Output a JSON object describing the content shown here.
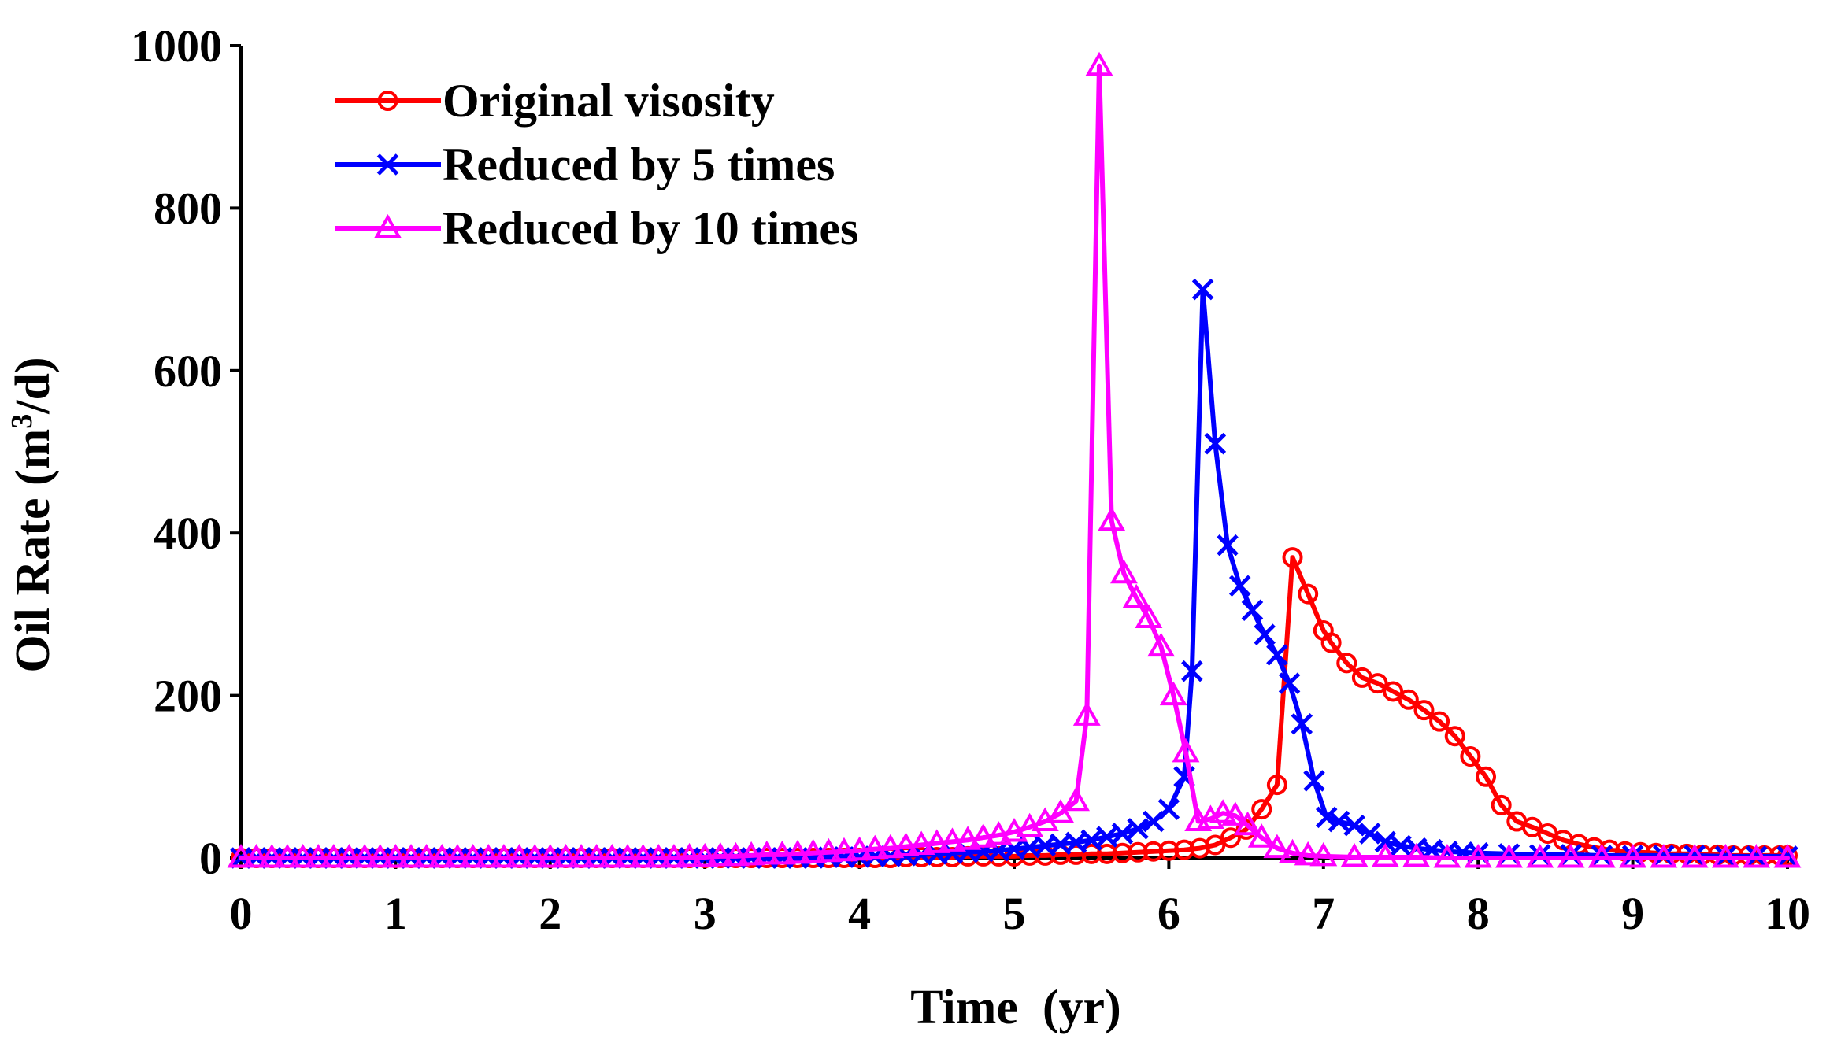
{
  "chart_data": {
    "type": "line",
    "title": "",
    "xlabel": "Time  (yr)",
    "ylabel_main": "Oil Rate (m",
    "ylabel_sup": "3",
    "ylabel_end": "/d)",
    "xlim": [
      0,
      10
    ],
    "ylim": [
      0,
      1000
    ],
    "xticks": [
      "0",
      "1",
      "2",
      "3",
      "4",
      "5",
      "6",
      "7",
      "8",
      "9",
      "10"
    ],
    "yticks": [
      "0",
      "200",
      "400",
      "600",
      "800",
      "1000"
    ],
    "legend_position": "top-left",
    "grid": false,
    "series": [
      {
        "name": "Original visosity",
        "color": "#ff0000",
        "marker": "circle",
        "x": [
          0,
          0.1,
          0.2,
          0.3,
          0.4,
          0.5,
          0.6,
          0.7,
          0.8,
          0.9,
          1.0,
          1.1,
          1.2,
          1.3,
          1.4,
          1.5,
          1.6,
          1.7,
          1.8,
          1.9,
          2.0,
          2.1,
          2.2,
          2.3,
          2.4,
          2.5,
          2.6,
          2.7,
          2.8,
          2.9,
          3.0,
          3.1,
          3.2,
          3.3,
          3.4,
          3.5,
          3.6,
          3.7,
          3.8,
          3.9,
          4.0,
          4.1,
          4.2,
          4.3,
          4.4,
          4.5,
          4.6,
          4.7,
          4.8,
          4.9,
          5.0,
          5.1,
          5.2,
          5.3,
          5.4,
          5.5,
          5.6,
          5.7,
          5.8,
          5.9,
          6.0,
          6.1,
          6.2,
          6.3,
          6.4,
          6.5,
          6.6,
          6.7,
          6.8,
          6.9,
          7.0,
          7.05,
          7.15,
          7.25,
          7.35,
          7.45,
          7.55,
          7.65,
          7.75,
          7.85,
          7.95,
          8.05,
          8.15,
          8.25,
          8.35,
          8.45,
          8.55,
          8.65,
          8.75,
          8.85,
          8.95,
          9.05,
          9.15,
          9.25,
          9.35,
          9.45,
          9.55,
          9.65,
          9.75,
          9.85,
          9.95,
          10.0
        ],
        "y": [
          0,
          0,
          0,
          0,
          0,
          0,
          0,
          0,
          0,
          0,
          0,
          0,
          0,
          0,
          0,
          0,
          0,
          0,
          0,
          0,
          0,
          0,
          0,
          0,
          0,
          0,
          0,
          0,
          0,
          0,
          0,
          0,
          0,
          0,
          0,
          0,
          0,
          0,
          0,
          0,
          0,
          0,
          0,
          1,
          1,
          1,
          1,
          2,
          2,
          2,
          2,
          3,
          3,
          4,
          4,
          5,
          5,
          6,
          7,
          8,
          9,
          10,
          12,
          16,
          25,
          35,
          60,
          90,
          370,
          325,
          280,
          265,
          240,
          222,
          215,
          205,
          195,
          182,
          168,
          150,
          125,
          100,
          65,
          45,
          38,
          30,
          22,
          17,
          13,
          10,
          8,
          7,
          6,
          5,
          5,
          4,
          4,
          3,
          3,
          3,
          3,
          3
        ]
      },
      {
        "name": "Reduced by 5 times",
        "color": "#0000ff",
        "marker": "x",
        "x": [
          0,
          0.1,
          0.2,
          0.3,
          0.4,
          0.5,
          0.6,
          0.7,
          0.8,
          0.9,
          1.0,
          1.1,
          1.2,
          1.3,
          1.4,
          1.5,
          1.6,
          1.7,
          1.8,
          1.9,
          2.0,
          2.1,
          2.2,
          2.3,
          2.4,
          2.5,
          2.6,
          2.7,
          2.8,
          2.9,
          3.0,
          3.1,
          3.2,
          3.3,
          3.4,
          3.5,
          3.6,
          3.7,
          3.8,
          3.9,
          4.0,
          4.1,
          4.2,
          4.3,
          4.4,
          4.5,
          4.6,
          4.7,
          4.8,
          4.9,
          5.0,
          5.1,
          5.2,
          5.3,
          5.4,
          5.5,
          5.6,
          5.7,
          5.8,
          5.9,
          6.0,
          6.1,
          6.15,
          6.22,
          6.3,
          6.38,
          6.46,
          6.54,
          6.62,
          6.7,
          6.78,
          6.86,
          6.94,
          7.02,
          7.1,
          7.2,
          7.3,
          7.4,
          7.5,
          7.6,
          7.7,
          7.8,
          7.9,
          8.0,
          8.2,
          8.4,
          8.6,
          8.8,
          9.0,
          9.2,
          9.4,
          9.6,
          9.8,
          10.0
        ],
        "y": [
          0,
          0,
          0,
          0,
          0,
          0,
          0,
          0,
          0,
          0,
          0,
          0,
          0,
          0,
          0,
          0,
          0,
          0,
          0,
          0,
          0,
          0,
          0,
          0,
          0,
          0,
          0,
          0,
          0,
          0,
          0,
          0,
          0,
          0,
          0,
          0,
          0,
          0,
          1,
          1,
          1,
          2,
          2,
          3,
          4,
          5,
          6,
          7,
          8,
          9,
          11,
          13,
          15,
          17,
          19,
          22,
          26,
          30,
          36,
          45,
          60,
          100,
          230,
          700,
          510,
          385,
          335,
          305,
          275,
          250,
          215,
          165,
          95,
          50,
          45,
          40,
          30,
          20,
          15,
          12,
          10,
          8,
          7,
          6,
          5,
          4,
          4,
          3,
          3,
          3,
          3,
          2,
          2,
          2
        ]
      },
      {
        "name": "Reduced by 10 times",
        "color": "#ff00ff",
        "marker": "triangle",
        "x": [
          0,
          0.1,
          0.2,
          0.3,
          0.4,
          0.5,
          0.6,
          0.7,
          0.8,
          0.9,
          1.0,
          1.1,
          1.2,
          1.3,
          1.4,
          1.5,
          1.6,
          1.7,
          1.8,
          1.9,
          2.0,
          2.1,
          2.2,
          2.3,
          2.4,
          2.5,
          2.6,
          2.7,
          2.8,
          2.9,
          3.0,
          3.1,
          3.2,
          3.3,
          3.4,
          3.5,
          3.6,
          3.7,
          3.8,
          3.9,
          4.0,
          4.1,
          4.2,
          4.3,
          4.4,
          4.5,
          4.6,
          4.7,
          4.8,
          4.9,
          5.0,
          5.1,
          5.2,
          5.3,
          5.4,
          5.47,
          5.55,
          5.63,
          5.71,
          5.79,
          5.87,
          5.95,
          6.03,
          6.11,
          6.19,
          6.27,
          6.35,
          6.43,
          6.51,
          6.6,
          6.7,
          6.8,
          6.9,
          7.0,
          7.2,
          7.4,
          7.6,
          7.8,
          8.0,
          8.2,
          8.4,
          8.6,
          8.8,
          9.0,
          9.2,
          9.4,
          9.6,
          9.8,
          10.0
        ],
        "y": [
          0,
          0,
          0,
          0,
          0,
          0,
          0,
          0,
          0,
          0,
          0,
          0,
          0,
          0,
          0,
          0,
          0,
          0,
          0,
          0,
          0,
          0,
          0,
          0,
          0,
          0,
          0,
          0,
          0,
          1,
          1,
          2,
          2,
          3,
          4,
          4,
          5,
          6,
          7,
          8,
          9,
          11,
          12,
          14,
          16,
          18,
          20,
          22,
          25,
          28,
          32,
          38,
          45,
          55,
          70,
          175,
          975,
          415,
          350,
          320,
          295,
          260,
          200,
          130,
          45,
          48,
          55,
          52,
          40,
          25,
          12,
          6,
          3,
          2,
          1,
          1,
          1,
          0,
          0,
          0,
          0,
          0,
          0,
          0,
          0,
          0,
          0,
          0,
          0
        ]
      }
    ]
  }
}
